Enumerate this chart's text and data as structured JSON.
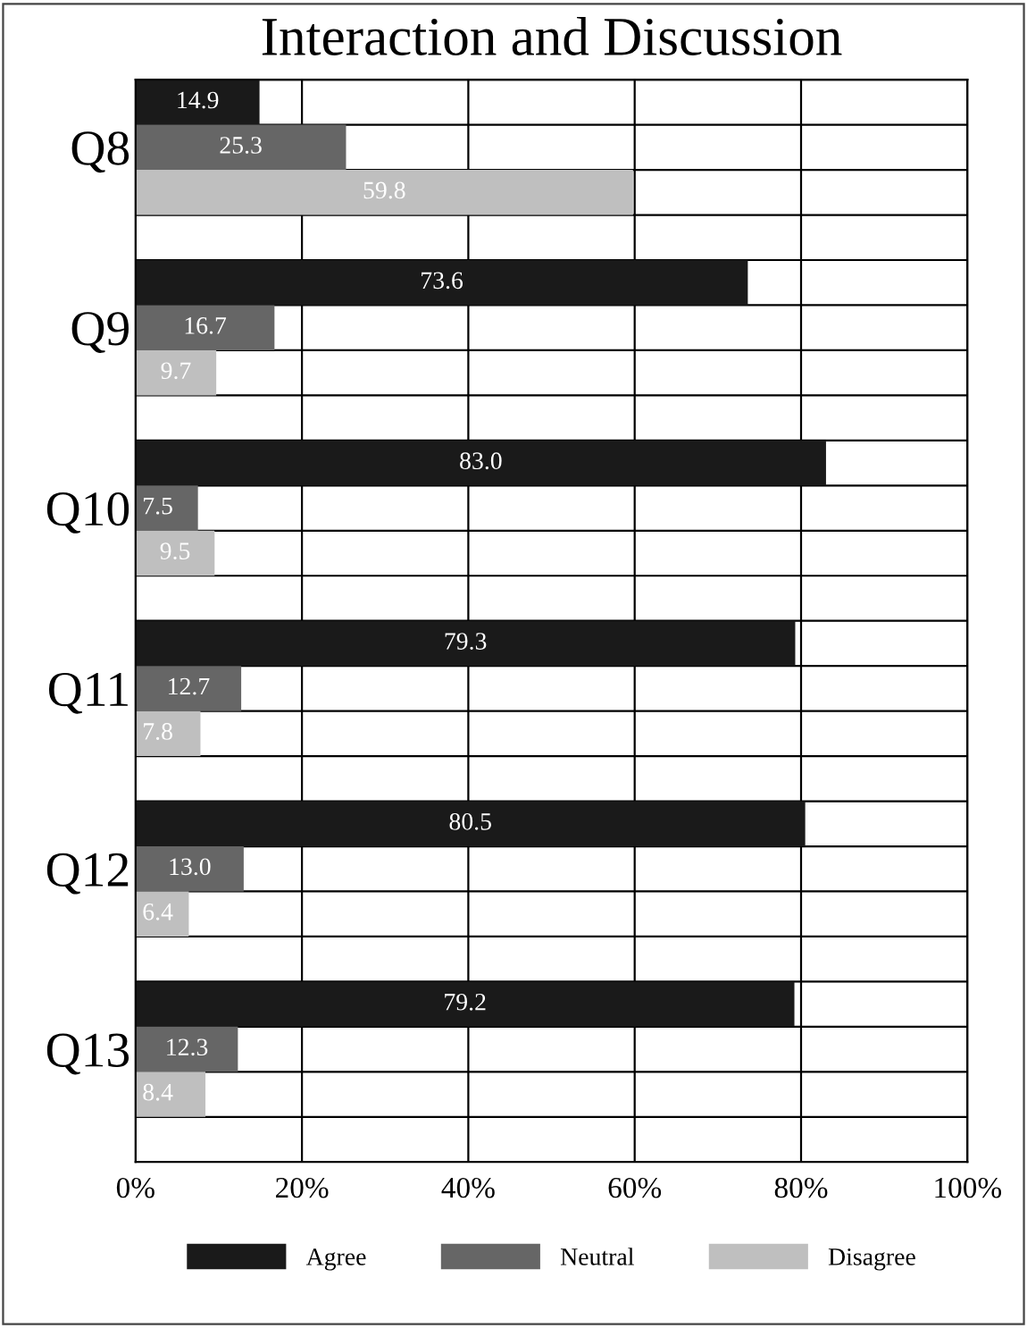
{
  "chart_data": {
    "type": "bar",
    "orientation": "horizontal",
    "title": "Interaction and Discussion",
    "categories": [
      "Q8",
      "Q9",
      "Q10",
      "Q11",
      "Q12",
      "Q13"
    ],
    "series": [
      {
        "name": "Agree",
        "color": "#1a1a1a",
        "values": [
          14.9,
          73.6,
          83.0,
          79.3,
          80.5,
          79.2
        ],
        "value_labels": [
          "14.9",
          "73.6",
          "83.0",
          "79.3",
          "80.5",
          "79.2"
        ]
      },
      {
        "name": "Neutral",
        "color": "#666666",
        "values": [
          25.3,
          16.7,
          7.5,
          12.7,
          13.0,
          12.3
        ],
        "value_labels": [
          "25.3",
          "16.7",
          "7.5",
          "12.7",
          "13.0",
          "12.3"
        ]
      },
      {
        "name": "Disagree",
        "color": "#bfbfbf",
        "values": [
          59.8,
          9.7,
          9.5,
          7.8,
          6.4,
          8.4
        ],
        "value_labels": [
          "59.8",
          "9.7",
          "9.5",
          "7.8",
          "6.4",
          "8.4"
        ]
      }
    ],
    "xlim": [
      0,
      100
    ],
    "xticks": [
      {
        "value": 0,
        "label": "0%"
      },
      {
        "value": 20,
        "label": "20%"
      },
      {
        "value": 40,
        "label": "40%"
      },
      {
        "value": 60,
        "label": "60%"
      },
      {
        "value": 80,
        "label": "80%"
      },
      {
        "value": 100,
        "label": "100%"
      }
    ],
    "grid": true,
    "legend": "bottom"
  }
}
